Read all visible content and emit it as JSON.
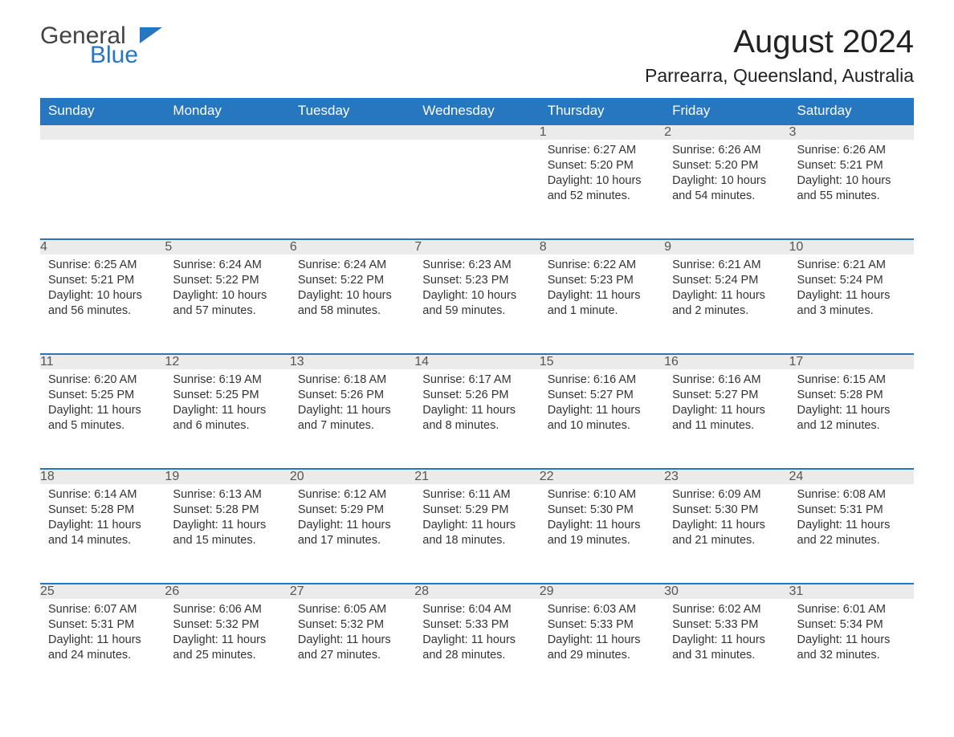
{
  "logo": {
    "general": "General",
    "blue": "Blue"
  },
  "title": "August 2024",
  "location": "Parrearra, Queensland, Australia",
  "colors": {
    "header_bg": "#2676c0",
    "header_text": "#ffffff",
    "daynum_bg": "#ebebeb",
    "row_border": "#2676c0",
    "body_text": "#333333",
    "page_bg": "#ffffff"
  },
  "fonts": {
    "title_size_pt": 30,
    "location_size_pt": 17,
    "header_size_pt": 13,
    "body_size_pt": 11
  },
  "days_of_week": [
    "Sunday",
    "Monday",
    "Tuesday",
    "Wednesday",
    "Thursday",
    "Friday",
    "Saturday"
  ],
  "weeks": [
    [
      null,
      null,
      null,
      null,
      {
        "n": "1",
        "sunrise": "6:27 AM",
        "sunset": "5:20 PM",
        "daylight": "10 hours and 52 minutes."
      },
      {
        "n": "2",
        "sunrise": "6:26 AM",
        "sunset": "5:20 PM",
        "daylight": "10 hours and 54 minutes."
      },
      {
        "n": "3",
        "sunrise": "6:26 AM",
        "sunset": "5:21 PM",
        "daylight": "10 hours and 55 minutes."
      }
    ],
    [
      {
        "n": "4",
        "sunrise": "6:25 AM",
        "sunset": "5:21 PM",
        "daylight": "10 hours and 56 minutes."
      },
      {
        "n": "5",
        "sunrise": "6:24 AM",
        "sunset": "5:22 PM",
        "daylight": "10 hours and 57 minutes."
      },
      {
        "n": "6",
        "sunrise": "6:24 AM",
        "sunset": "5:22 PM",
        "daylight": "10 hours and 58 minutes."
      },
      {
        "n": "7",
        "sunrise": "6:23 AM",
        "sunset": "5:23 PM",
        "daylight": "10 hours and 59 minutes."
      },
      {
        "n": "8",
        "sunrise": "6:22 AM",
        "sunset": "5:23 PM",
        "daylight": "11 hours and 1 minute."
      },
      {
        "n": "9",
        "sunrise": "6:21 AM",
        "sunset": "5:24 PM",
        "daylight": "11 hours and 2 minutes."
      },
      {
        "n": "10",
        "sunrise": "6:21 AM",
        "sunset": "5:24 PM",
        "daylight": "11 hours and 3 minutes."
      }
    ],
    [
      {
        "n": "11",
        "sunrise": "6:20 AM",
        "sunset": "5:25 PM",
        "daylight": "11 hours and 5 minutes."
      },
      {
        "n": "12",
        "sunrise": "6:19 AM",
        "sunset": "5:25 PM",
        "daylight": "11 hours and 6 minutes."
      },
      {
        "n": "13",
        "sunrise": "6:18 AM",
        "sunset": "5:26 PM",
        "daylight": "11 hours and 7 minutes."
      },
      {
        "n": "14",
        "sunrise": "6:17 AM",
        "sunset": "5:26 PM",
        "daylight": "11 hours and 8 minutes."
      },
      {
        "n": "15",
        "sunrise": "6:16 AM",
        "sunset": "5:27 PM",
        "daylight": "11 hours and 10 minutes."
      },
      {
        "n": "16",
        "sunrise": "6:16 AM",
        "sunset": "5:27 PM",
        "daylight": "11 hours and 11 minutes."
      },
      {
        "n": "17",
        "sunrise": "6:15 AM",
        "sunset": "5:28 PM",
        "daylight": "11 hours and 12 minutes."
      }
    ],
    [
      {
        "n": "18",
        "sunrise": "6:14 AM",
        "sunset": "5:28 PM",
        "daylight": "11 hours and 14 minutes."
      },
      {
        "n": "19",
        "sunrise": "6:13 AM",
        "sunset": "5:28 PM",
        "daylight": "11 hours and 15 minutes."
      },
      {
        "n": "20",
        "sunrise": "6:12 AM",
        "sunset": "5:29 PM",
        "daylight": "11 hours and 17 minutes."
      },
      {
        "n": "21",
        "sunrise": "6:11 AM",
        "sunset": "5:29 PM",
        "daylight": "11 hours and 18 minutes."
      },
      {
        "n": "22",
        "sunrise": "6:10 AM",
        "sunset": "5:30 PM",
        "daylight": "11 hours and 19 minutes."
      },
      {
        "n": "23",
        "sunrise": "6:09 AM",
        "sunset": "5:30 PM",
        "daylight": "11 hours and 21 minutes."
      },
      {
        "n": "24",
        "sunrise": "6:08 AM",
        "sunset": "5:31 PM",
        "daylight": "11 hours and 22 minutes."
      }
    ],
    [
      {
        "n": "25",
        "sunrise": "6:07 AM",
        "sunset": "5:31 PM",
        "daylight": "11 hours and 24 minutes."
      },
      {
        "n": "26",
        "sunrise": "6:06 AM",
        "sunset": "5:32 PM",
        "daylight": "11 hours and 25 minutes."
      },
      {
        "n": "27",
        "sunrise": "6:05 AM",
        "sunset": "5:32 PM",
        "daylight": "11 hours and 27 minutes."
      },
      {
        "n": "28",
        "sunrise": "6:04 AM",
        "sunset": "5:33 PM",
        "daylight": "11 hours and 28 minutes."
      },
      {
        "n": "29",
        "sunrise": "6:03 AM",
        "sunset": "5:33 PM",
        "daylight": "11 hours and 29 minutes."
      },
      {
        "n": "30",
        "sunrise": "6:02 AM",
        "sunset": "5:33 PM",
        "daylight": "11 hours and 31 minutes."
      },
      {
        "n": "31",
        "sunrise": "6:01 AM",
        "sunset": "5:34 PM",
        "daylight": "11 hours and 32 minutes."
      }
    ]
  ],
  "labels": {
    "sunrise": "Sunrise:",
    "sunset": "Sunset:",
    "daylight": "Daylight:"
  }
}
